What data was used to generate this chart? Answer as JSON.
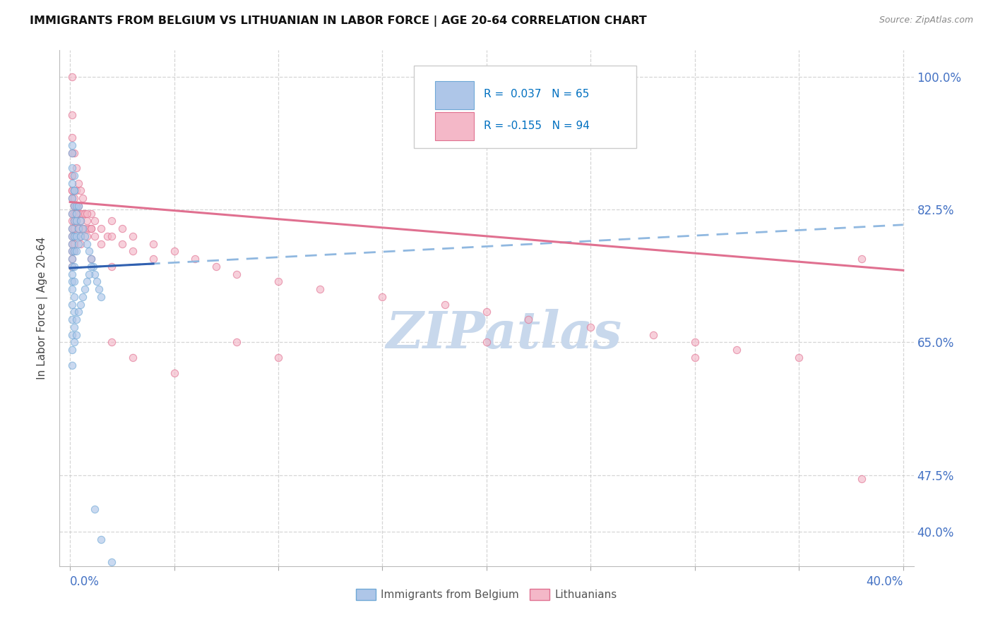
{
  "title": "IMMIGRANTS FROM BELGIUM VS LITHUANIAN IN LABOR FORCE | AGE 20-64 CORRELATION CHART",
  "source": "Source: ZipAtlas.com",
  "ylabel": "In Labor Force | Age 20-64",
  "belgium_color": "#aec6e8",
  "belgium_edge": "#6fa8d6",
  "lithuanian_color": "#f4b8c8",
  "lithuanian_edge": "#e07090",
  "belgium_line_color": "#3060b0",
  "lithuanian_line_color": "#e07090",
  "belgian_dashed_color": "#90b8e0",
  "legend_R_color": "#0070c0",
  "legend_N_color": "#0070c0",
  "watermark_color": "#c8d8ec",
  "grid_color": "#cccccc",
  "background_color": "#ffffff",
  "ytick_color": "#4472c4",
  "xtick_color": "#4472c4",
  "scatter_size": 55,
  "scatter_alpha": 0.65,
  "xlim": [
    -0.005,
    0.405
  ],
  "ylim": [
    0.355,
    1.035
  ],
  "ytick_vals": [
    0.4,
    0.475,
    0.65,
    0.825,
    1.0
  ],
  "ytick_labels": [
    "40.0%",
    "47.5%",
    "65.0%",
    "82.5%",
    "100.0%"
  ],
  "bel_line_x": [
    0.0,
    0.4
  ],
  "bel_line_y": [
    0.748,
    0.805
  ],
  "lit_line_x": [
    0.0,
    0.4
  ],
  "lit_line_y": [
    0.835,
    0.745
  ],
  "bel_x": [
    0.001,
    0.001,
    0.001,
    0.001,
    0.001,
    0.001,
    0.001,
    0.001,
    0.001,
    0.001,
    0.001,
    0.001,
    0.001,
    0.002,
    0.002,
    0.002,
    0.002,
    0.002,
    0.002,
    0.002,
    0.002,
    0.002,
    0.003,
    0.003,
    0.003,
    0.003,
    0.004,
    0.004,
    0.005,
    0.005,
    0.006,
    0.007,
    0.008,
    0.009,
    0.01,
    0.011,
    0.012,
    0.013,
    0.014,
    0.015,
    0.001,
    0.001,
    0.001,
    0.001,
    0.002,
    0.002,
    0.003,
    0.004,
    0.001,
    0.001,
    0.001,
    0.002,
    0.002,
    0.003,
    0.003,
    0.004,
    0.005,
    0.006,
    0.007,
    0.008,
    0.009,
    0.01,
    0.012,
    0.015,
    0.02
  ],
  "bel_y": [
    0.84,
    0.82,
    0.8,
    0.79,
    0.78,
    0.77,
    0.76,
    0.75,
    0.74,
    0.73,
    0.72,
    0.7,
    0.68,
    0.85,
    0.83,
    0.81,
    0.79,
    0.77,
    0.75,
    0.73,
    0.71,
    0.69,
    0.83,
    0.81,
    0.79,
    0.77,
    0.8,
    0.78,
    0.81,
    0.79,
    0.8,
    0.79,
    0.78,
    0.77,
    0.76,
    0.75,
    0.74,
    0.73,
    0.72,
    0.71,
    0.9,
    0.88,
    0.86,
    0.91,
    0.87,
    0.85,
    0.82,
    0.83,
    0.66,
    0.64,
    0.62,
    0.67,
    0.65,
    0.68,
    0.66,
    0.69,
    0.7,
    0.71,
    0.72,
    0.73,
    0.74,
    0.75,
    0.43,
    0.39,
    0.36
  ],
  "lit_x": [
    0.001,
    0.001,
    0.001,
    0.001,
    0.001,
    0.001,
    0.001,
    0.001,
    0.001,
    0.001,
    0.001,
    0.002,
    0.002,
    0.002,
    0.002,
    0.002,
    0.002,
    0.002,
    0.002,
    0.003,
    0.003,
    0.003,
    0.003,
    0.004,
    0.004,
    0.004,
    0.005,
    0.005,
    0.005,
    0.006,
    0.006,
    0.007,
    0.007,
    0.008,
    0.008,
    0.009,
    0.01,
    0.01,
    0.012,
    0.012,
    0.015,
    0.015,
    0.018,
    0.02,
    0.02,
    0.025,
    0.025,
    0.03,
    0.03,
    0.04,
    0.04,
    0.05,
    0.06,
    0.07,
    0.08,
    0.1,
    0.12,
    0.15,
    0.18,
    0.2,
    0.22,
    0.25,
    0.28,
    0.3,
    0.32,
    0.35,
    0.38,
    0.001,
    0.001,
    0.001,
    0.002,
    0.003,
    0.004,
    0.005,
    0.006,
    0.008,
    0.01,
    0.02,
    0.03,
    0.05,
    0.08,
    0.1,
    0.2,
    0.3,
    0.38,
    0.001,
    0.001,
    0.001,
    0.002,
    0.003,
    0.004,
    0.005,
    0.01,
    0.02
  ],
  "lit_y": [
    0.84,
    0.82,
    0.81,
    0.8,
    0.79,
    0.78,
    0.77,
    0.76,
    0.75,
    0.85,
    0.87,
    0.84,
    0.83,
    0.82,
    0.81,
    0.8,
    0.79,
    0.78,
    0.77,
    0.85,
    0.83,
    0.82,
    0.81,
    0.83,
    0.82,
    0.8,
    0.82,
    0.81,
    0.79,
    0.82,
    0.8,
    0.82,
    0.8,
    0.81,
    0.79,
    0.8,
    0.82,
    0.8,
    0.81,
    0.79,
    0.8,
    0.78,
    0.79,
    0.81,
    0.79,
    0.8,
    0.78,
    0.79,
    0.77,
    0.78,
    0.76,
    0.77,
    0.76,
    0.75,
    0.74,
    0.73,
    0.72,
    0.71,
    0.7,
    0.69,
    0.68,
    0.67,
    0.66,
    0.65,
    0.64,
    0.63,
    0.76,
    1.0,
    0.95,
    0.92,
    0.9,
    0.88,
    0.86,
    0.85,
    0.84,
    0.82,
    0.8,
    0.65,
    0.63,
    0.61,
    0.65,
    0.63,
    0.65,
    0.63,
    0.47,
    0.9,
    0.87,
    0.85,
    0.83,
    0.82,
    0.8,
    0.78,
    0.76,
    0.75
  ]
}
